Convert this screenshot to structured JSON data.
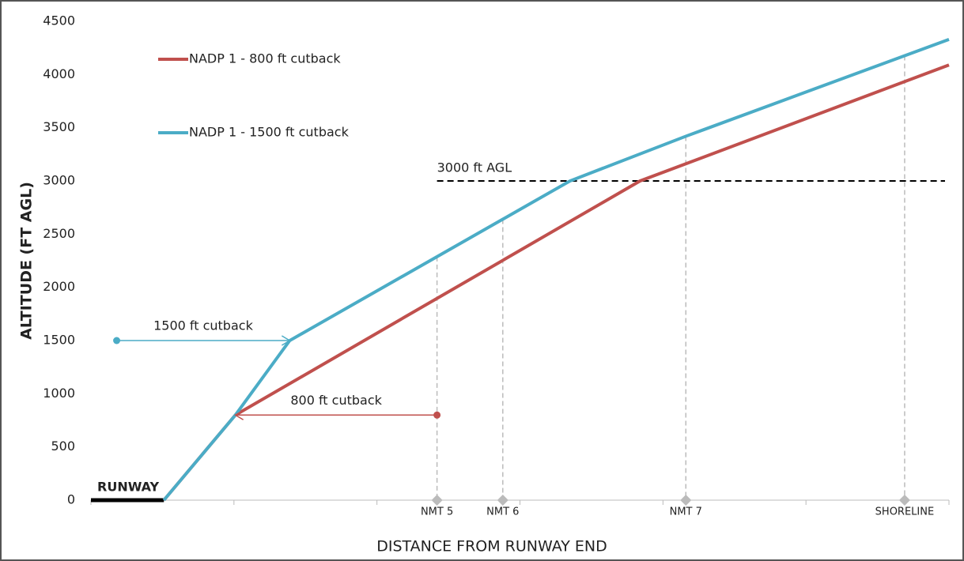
{
  "chart_data": {
    "type": "line",
    "y_label": "ALTITUDE (FT AGL)",
    "x_label": "DISTANCE FROM RUNWAY END",
    "ylim": [
      0,
      4500
    ],
    "yticks": [
      0,
      500,
      1000,
      1500,
      2000,
      2500,
      3000,
      3500,
      4000,
      4500
    ],
    "xlim": [
      0,
      6
    ],
    "xticks": [
      0,
      1,
      2,
      3,
      4,
      5,
      6
    ],
    "legend": "upper left",
    "series": [
      {
        "name": "NADP 1 - 800 ft cutback",
        "color": "#c0504d",
        "x": [
          0.51,
          1.01,
          3.84,
          6.0
        ],
        "values": [
          0,
          800,
          3000,
          4090
        ]
      },
      {
        "name": "NADP 1 - 1500 ft cutback",
        "color": "#4bacc6",
        "x": [
          0.51,
          1.01,
          1.39,
          3.35,
          4.16,
          6.0
        ],
        "values": [
          0,
          800,
          1500,
          3000,
          3420,
          4330
        ]
      }
    ],
    "runway": {
      "label": "RUNWAY",
      "x": [
        0,
        0.51
      ]
    },
    "reference_line": {
      "label": "3000 ft AGL",
      "value": 3000,
      "x_start": 2.42
    },
    "markers": [
      {
        "label": "NMT 5",
        "x": 2.42
      },
      {
        "label": "NMT 6",
        "x": 2.88
      },
      {
        "label": "NMT 7",
        "x": 4.16
      },
      {
        "label": "SHORELINE",
        "x": 5.69
      }
    ],
    "annotations": [
      {
        "text": "1500 ft cutback",
        "y": 1500,
        "x_from": 0.18,
        "x_to": 1.39,
        "color": "#4bacc6"
      },
      {
        "text": "800 ft cutback",
        "y": 800,
        "x_from": 2.42,
        "x_to": 1.01,
        "color": "#c0504d"
      }
    ]
  }
}
